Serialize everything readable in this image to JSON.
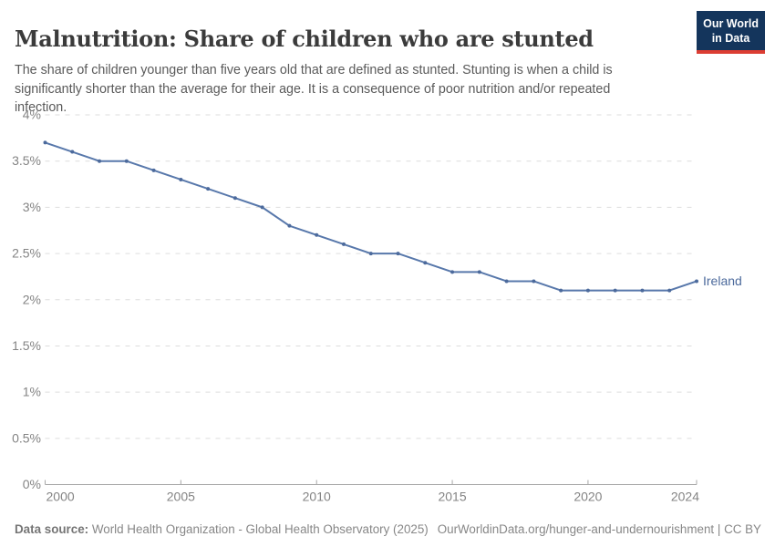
{
  "header": {
    "title": "Malnutrition: Share of children who are stunted",
    "subtitle": "The share of children younger than five years old that are defined as stunted. Stunting is when a child is significantly shorter than the average for their age. It is a consequence of poor nutrition and/or repeated infection.",
    "logo": {
      "line1": "Our World",
      "line2": "in Data"
    }
  },
  "footer": {
    "datasource_label": "Data source:",
    "datasource_value": " World Health Organization - Global Health Observatory (2025)",
    "link": "OurWorldinData.org/hunger-and-undernourishment | CC BY"
  },
  "colors": {
    "line": "#5878ab",
    "marker": "#4c6a9c",
    "entity_label": "#4c6a9c",
    "grid": "#dddddd",
    "axis": "#a8a8a8",
    "tick_label": "#848484",
    "logo_bg": "#14355c",
    "logo_red": "#dc3d33"
  },
  "chart_data": {
    "type": "line",
    "title": "Malnutrition: Share of children who are stunted",
    "xlabel": "",
    "ylabel": "",
    "xlim": [
      2000,
      2024
    ],
    "ylim": [
      0,
      4
    ],
    "grid": "horizontal-dashed",
    "legend_position": "end-of-line-label",
    "x_ticks": [
      {
        "value": 2000,
        "label": "2000"
      },
      {
        "value": 2005,
        "label": "2005"
      },
      {
        "value": 2010,
        "label": "2010"
      },
      {
        "value": 2015,
        "label": "2015"
      },
      {
        "value": 2020,
        "label": "2020"
      },
      {
        "value": 2024,
        "label": "2024"
      }
    ],
    "y_ticks": [
      {
        "value": 0,
        "label": "0%"
      },
      {
        "value": 0.5,
        "label": "0.5%"
      },
      {
        "value": 1,
        "label": "1%"
      },
      {
        "value": 1.5,
        "label": "1.5%"
      },
      {
        "value": 2,
        "label": "2%"
      },
      {
        "value": 2.5,
        "label": "2.5%"
      },
      {
        "value": 3,
        "label": "3%"
      },
      {
        "value": 3.5,
        "label": "3.5%"
      },
      {
        "value": 4,
        "label": "4%"
      }
    ],
    "series": [
      {
        "name": "Ireland",
        "x": [
          2000,
          2001,
          2002,
          2003,
          2004,
          2005,
          2006,
          2007,
          2008,
          2009,
          2010,
          2011,
          2012,
          2013,
          2014,
          2015,
          2016,
          2017,
          2018,
          2019,
          2020,
          2021,
          2022,
          2023,
          2024
        ],
        "values": [
          3.7,
          3.6,
          3.5,
          3.5,
          3.4,
          3.3,
          3.2,
          3.1,
          3.0,
          2.8,
          2.7,
          2.6,
          2.5,
          2.5,
          2.4,
          2.3,
          2.3,
          2.2,
          2.2,
          2.1,
          2.1,
          2.1,
          2.1,
          2.1,
          2.2
        ]
      }
    ]
  }
}
